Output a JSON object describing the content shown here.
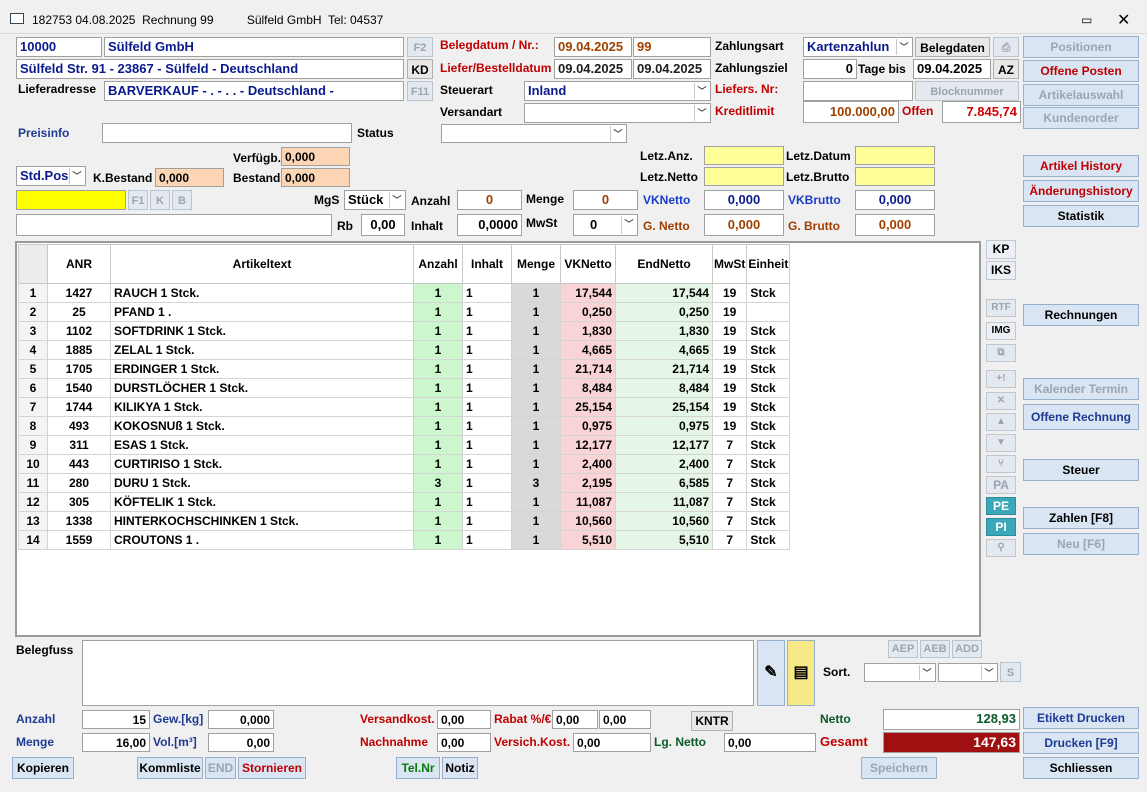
{
  "window": {
    "title": "182753 04.08.2025  Rechnung 99          Sülfeld GmbH  Tel: 04537",
    "sub": ""
  },
  "customer": {
    "number": "10000",
    "name": "Sülfeld GmbH",
    "address": "Sülfeld Str. 91 - 23867 - Sülfeld - Deutschland",
    "delivery_label": "Lieferadresse",
    "delivery": "BARVERKAUF  - . - . . - Deutschland -",
    "f2": "F2",
    "kd": "KD",
    "f11": "F11"
  },
  "beleg": {
    "datum_label": "Belegdatum / Nr.:",
    "datum": "09.04.2025",
    "nr": "99",
    "liefer_label": "Liefer/Bestelldatum",
    "liefer1": "09.04.2025",
    "liefer2": "09.04.2025",
    "steuerart_label": "Steuerart",
    "steuerart": "Inland",
    "versandart_label": "Versandart",
    "versandart": ""
  },
  "zahlung": {
    "art_label": "Zahlungsart",
    "art": "Kartenzahlun",
    "belegdaten": "Belegdaten",
    "ziel_label": "Zahlungsziel",
    "ziel_days": "0",
    "ziel_tage_bis": "Tage bis",
    "ziel_date": "09.04.2025",
    "az": "AZ",
    "liefers_label": "Liefers. Nr:",
    "blocknummer": "Blocknummer",
    "kreditlimit_label": "Kreditlimit",
    "kreditlimit": "100.000,00",
    "offen_label": "Offen",
    "offen": "7.845,74"
  },
  "right_buttons": {
    "positionen": "Positionen",
    "offene_posten": "Offene Posten",
    "artikelauswahl": "Artikelauswahl",
    "kundenorder": "Kundenorder",
    "artikel_history": "Artikel History",
    "aenderungshistory": "Änderungshistory",
    "statistik": "Statistik",
    "rechnungen": "Rechnungen",
    "kalender": "Kalender Termin",
    "offene_rechnung": "Offene Rechnung",
    "steuer": "Steuer",
    "zahlen": "Zahlen [F8]",
    "neu": "Neu [F6]",
    "etikett": "Etikett Drucken",
    "drucken": "Drucken [F9]",
    "schliessen": "Schliessen"
  },
  "entry": {
    "preisinfo_label": "Preisinfo",
    "status_label": "Status",
    "verfuegb_label": "Verfügb.",
    "verfuegb": "0,000",
    "kbestand_label": "K.Bestand",
    "kbestand": "0,000",
    "bestand_label": "Bestand",
    "bestand": "0,000",
    "stdpos": "Std.Pos",
    "f1": "F1",
    "k": "K",
    "b": "B",
    "mgs_label": "MgS",
    "mgs": "Stück",
    "anzahl_label": "Anzahl",
    "anzahl": "0",
    "menge_label": "Menge",
    "menge": "0",
    "vknetto_label": "VKNetto",
    "vknetto": "0,000",
    "vkbrutto_label": "VKBrutto",
    "vkbrutto": "0,000",
    "rb_label": "Rb",
    "rb": "0,00",
    "inhalt_label": "Inhalt",
    "inhalt": "0,0000",
    "mwst_label": "MwSt",
    "mwst": "0",
    "gnetto_label": "G. Netto",
    "gnetto": "0,000",
    "gbrutto_label": "G. Brutto",
    "gbrutto": "0,000",
    "letzanz_label": "Letz.Anz.",
    "letzdatum_label": "Letz.Datum",
    "letznetto_label": "Letz.Netto",
    "letzbrutto_label": "Letz.Brutto"
  },
  "side": {
    "kp": "KP",
    "iks": "IKS",
    "rtf": "RTF",
    "img": "IMG",
    "pa": "PA",
    "pe": "PE",
    "pi": "PI"
  },
  "table": {
    "headers": [
      "ANR",
      "Artikeltext",
      "Anzahl",
      "Inhalt",
      "Menge",
      "VKNetto",
      "EndNetto",
      "MwSt",
      "Einheit"
    ],
    "rows": [
      [
        "1",
        "1427",
        "RAUCH 1 Stck.",
        "1",
        "1",
        "1",
        "17,544",
        "17,544",
        "19",
        "Stck"
      ],
      [
        "2",
        "25",
        "PFAND 1 .",
        "1",
        "1",
        "1",
        "0,250",
        "0,250",
        "19",
        ""
      ],
      [
        "3",
        "1102",
        "SOFTDRINK 1 Stck.",
        "1",
        "1",
        "1",
        "1,830",
        "1,830",
        "19",
        "Stck"
      ],
      [
        "4",
        "1885",
        "ZELAL 1 Stck.",
        "1",
        "1",
        "1",
        "4,665",
        "4,665",
        "19",
        "Stck"
      ],
      [
        "5",
        "1705",
        "ERDINGER 1 Stck.",
        "1",
        "1",
        "1",
        "21,714",
        "21,714",
        "19",
        "Stck"
      ],
      [
        "6",
        "1540",
        "DURSTLÖCHER 1 Stck.",
        "1",
        "1",
        "1",
        "8,484",
        "8,484",
        "19",
        "Stck"
      ],
      [
        "7",
        "1744",
        "KILIKYA 1 Stck.",
        "1",
        "1",
        "1",
        "25,154",
        "25,154",
        "19",
        "Stck"
      ],
      [
        "8",
        "493",
        "KOKOSNUß 1 Stck.",
        "1",
        "1",
        "1",
        "0,975",
        "0,975",
        "19",
        "Stck"
      ],
      [
        "9",
        "311",
        "ESAS 1 Stck.",
        "1",
        "1",
        "1",
        "12,177",
        "12,177",
        "7",
        "Stck"
      ],
      [
        "10",
        "443",
        "CURTIRISO 1 Stck.",
        "1",
        "1",
        "1",
        "2,400",
        "2,400",
        "7",
        "Stck"
      ],
      [
        "11",
        "280",
        "DURU 1 Stck.",
        "3",
        "1",
        "3",
        "2,195",
        "6,585",
        "7",
        "Stck"
      ],
      [
        "12",
        "305",
        "KÖFTELIK 1 Stck.",
        "1",
        "1",
        "1",
        "11,087",
        "11,087",
        "7",
        "Stck"
      ],
      [
        "13",
        "1338",
        "HINTERKOCHSCHINKEN 1 Stck.",
        "1",
        "1",
        "1",
        "10,560",
        "10,560",
        "7",
        "Stck"
      ],
      [
        "14",
        "1559",
        "CROUTONS 1 .",
        "1",
        "1",
        "1",
        "5,510",
        "5,510",
        "7",
        "Stck"
      ]
    ]
  },
  "footer": {
    "belegfuss_label": "Belegfuss",
    "aep": "AEP",
    "aeb": "AEB",
    "add": "ADD",
    "sort_label": "Sort.",
    "s": "S",
    "anzahl_label": "Anzahl",
    "anzahl": "15",
    "gew_label": "Gew.[kg]",
    "gew": "0,000",
    "menge_label": "Menge",
    "menge": "16,00",
    "vol_label": "Vol.[m³]",
    "vol": "0,00",
    "versandkost_label": "Versandkost.",
    "versandkost": "0,00",
    "rabatt_label": "Rabat %/€",
    "rabatt1": "0,00",
    "rabatt2": "0,00",
    "nachnahme_label": "Nachnahme",
    "nachnahme": "0,00",
    "versich_label": "Versich.Kost.",
    "versich": "0,00",
    "kntr": "KNTR",
    "lgnetto_label": "Lg. Netto",
    "lgnetto": "0,00",
    "netto_label": "Netto",
    "netto": "128,93",
    "gesamt_label": "Gesamt",
    "gesamt": "147,63",
    "kopieren": "Kopieren",
    "kommliste": "Kommliste",
    "end": "END",
    "stornieren": "Stornieren",
    "telnr": "Tel.Nr",
    "notiz": "Notiz",
    "speichern": "Speichern"
  }
}
